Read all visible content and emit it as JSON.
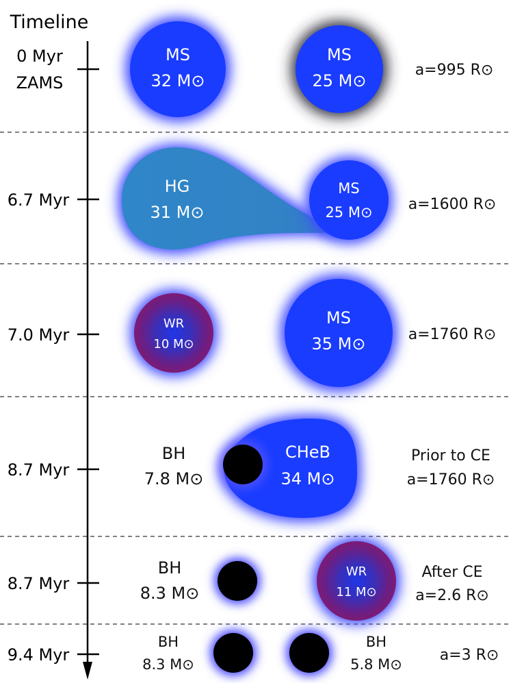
{
  "title": "Timeline",
  "stages": [
    {
      "time_lines": [
        "0 Myr",
        "ZAMS"
      ],
      "star_a": {
        "type": "MS",
        "mass": "32 M⊙"
      },
      "star_b": {
        "type": "MS",
        "mass": "25 M⊙"
      },
      "orbit_lines": [
        "a=995 R⊙"
      ]
    },
    {
      "time_lines": [
        "6.7 Myr"
      ],
      "star_a": {
        "type": "HG",
        "mass": "31 M⊙"
      },
      "star_b": {
        "type": "MS",
        "mass": "25 M⊙"
      },
      "orbit_lines": [
        "a=1600 R⊙"
      ]
    },
    {
      "time_lines": [
        "7.0 Myr"
      ],
      "star_a": {
        "type": "WR",
        "mass": "10 M⊙"
      },
      "star_b": {
        "type": "MS",
        "mass": "35 M⊙"
      },
      "orbit_lines": [
        "a=1760 R⊙"
      ]
    },
    {
      "time_lines": [
        "8.7 Myr"
      ],
      "star_a": {
        "type": "BH",
        "mass": "7.8 M⊙"
      },
      "star_b": {
        "type": "CHeB",
        "mass": "34 M⊙"
      },
      "orbit_lines": [
        "Prior to CE",
        "a=1760 R⊙"
      ]
    },
    {
      "time_lines": [
        "8.7 Myr"
      ],
      "star_a": {
        "type": "BH",
        "mass": "8.3 M⊙"
      },
      "star_b": {
        "type": "WR",
        "mass": "11 M⊙"
      },
      "orbit_lines": [
        "After CE",
        "a=2.6 R⊙"
      ]
    },
    {
      "time_lines": [
        "9.4 Myr"
      ],
      "star_a": {
        "type": "BH",
        "mass": "8.3 M⊙"
      },
      "star_b": {
        "type": "BH",
        "mass": "5.8 M⊙"
      },
      "orbit_lines": [
        "a=3 R⊙"
      ]
    }
  ],
  "colors": {
    "ms": "#1a3cff",
    "hg": "#2f86c8",
    "wr_core": "#2633d6",
    "wr_edge": "#7a1a72",
    "bh": "#000000",
    "glow": "#3f4bff"
  }
}
